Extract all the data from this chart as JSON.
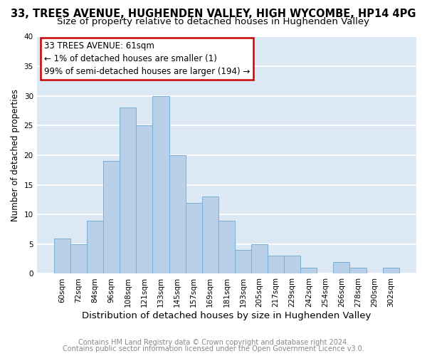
{
  "title": "33, TREES AVENUE, HUGHENDEN VALLEY, HIGH WYCOMBE, HP14 4PG",
  "subtitle": "Size of property relative to detached houses in Hughenden Valley",
  "xlabel": "Distribution of detached houses by size in Hughenden Valley",
  "ylabel": "Number of detached properties",
  "bar_labels": [
    "60sqm",
    "72sqm",
    "84sqm",
    "96sqm",
    "108sqm",
    "121sqm",
    "133sqm",
    "145sqm",
    "157sqm",
    "169sqm",
    "181sqm",
    "193sqm",
    "205sqm",
    "217sqm",
    "229sqm",
    "242sqm",
    "254sqm",
    "266sqm",
    "278sqm",
    "290sqm",
    "302sqm"
  ],
  "bar_values": [
    6,
    5,
    9,
    19,
    28,
    25,
    30,
    20,
    12,
    13,
    9,
    4,
    5,
    3,
    3,
    1,
    0,
    2,
    1,
    0,
    1
  ],
  "bar_color": "#b8d0e8",
  "bar_edge_color": "#7aaed4",
  "ylim": [
    0,
    40
  ],
  "yticks": [
    0,
    5,
    10,
    15,
    20,
    25,
    30,
    35,
    40
  ],
  "annotation_title": "33 TREES AVENUE: 61sqm",
  "annotation_line1": "← 1% of detached houses are smaller (1)",
  "annotation_line2": "99% of semi-detached houses are larger (194) →",
  "annotation_box_color": "#ffffff",
  "annotation_box_edge": "#cc0000",
  "footer_line1": "Contains HM Land Registry data © Crown copyright and database right 2024.",
  "footer_line2": "Contains public sector information licensed under the Open Government Licence v3.0.",
  "bg_color": "#ffffff",
  "plot_bg_color": "#dde8f5",
  "grid_color": "#ffffff",
  "title_fontsize": 10.5,
  "subtitle_fontsize": 9.5,
  "xlabel_fontsize": 9.5,
  "ylabel_fontsize": 8.5,
  "tick_fontsize": 7.5,
  "annotation_fontsize": 8.5,
  "footer_fontsize": 7
}
